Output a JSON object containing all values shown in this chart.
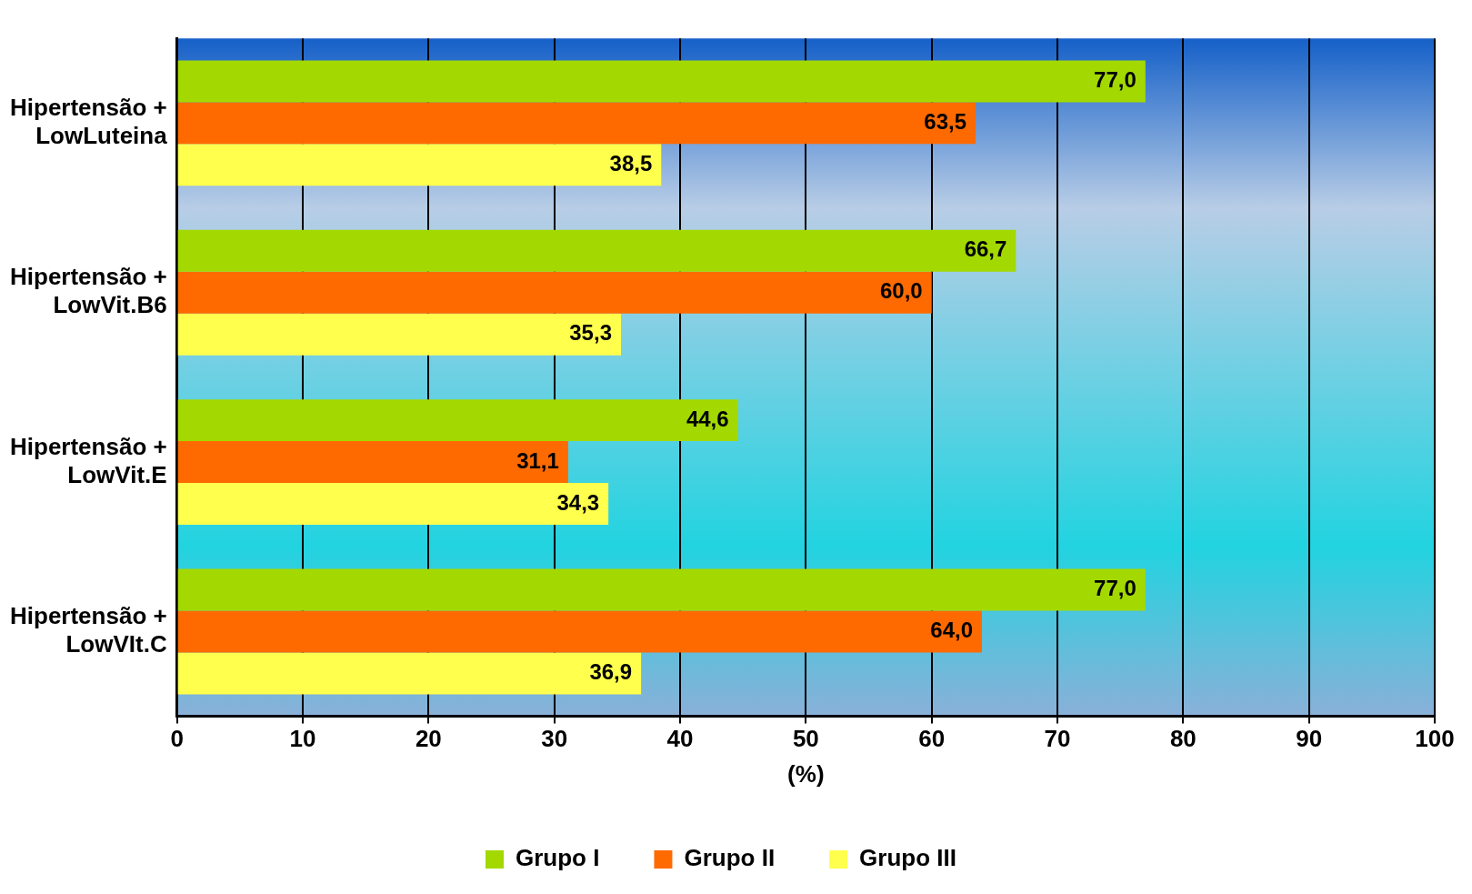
{
  "chart_data": {
    "type": "bar",
    "orientation": "horizontal",
    "categories": [
      "Hipertensão + LowLuteina",
      "Hipertensão + LowVit.B6",
      "Hipertensão + LowVit.E",
      "Hipertensão + LowVIt.C"
    ],
    "series": [
      {
        "name": "Grupo I",
        "color": "#a3d900",
        "values": [
          77.0,
          66.7,
          44.6,
          77.0
        ],
        "value_labels": [
          "77,0",
          "66,7",
          "44,6",
          "77,0"
        ]
      },
      {
        "name": "Grupo II",
        "color": "#ff6a00",
        "values": [
          63.5,
          60.0,
          31.1,
          64.0
        ],
        "value_labels": [
          "63,5",
          "60,0",
          "31,1",
          "64,0"
        ]
      },
      {
        "name": "Grupo III",
        "color": "#ffff4d",
        "values": [
          38.5,
          35.3,
          34.3,
          36.9
        ],
        "value_labels": [
          "38,5",
          "35,3",
          "34,3",
          "36,9"
        ]
      }
    ],
    "xlabel": "(%)",
    "xlim": [
      0,
      100
    ],
    "xticks": [
      0,
      10,
      20,
      30,
      40,
      50,
      60,
      70,
      80,
      90,
      100
    ],
    "grid": "x",
    "legend": "bottom"
  }
}
